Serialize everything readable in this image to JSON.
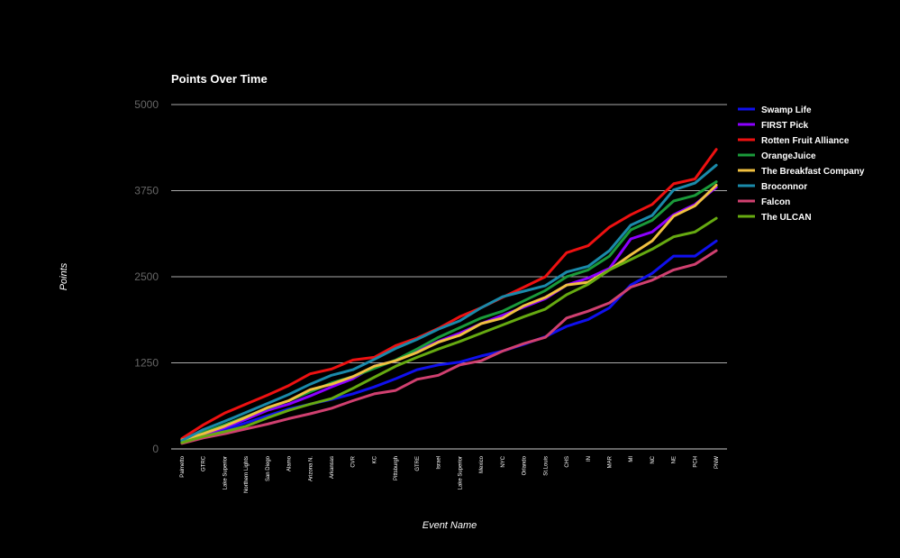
{
  "chart_data": {
    "type": "line",
    "title": "Points Over Time",
    "xlabel": "Event Name",
    "ylabel": "Points",
    "ylim": [
      0,
      5000
    ],
    "yticks": [
      0,
      1250,
      2500,
      3750,
      5000
    ],
    "grid": true,
    "legend_position": "right",
    "background": "#000000",
    "categories": [
      "Palmetto",
      "GTRC",
      "Lake Superior",
      "Northern Lights",
      "San Diego",
      "Alamo",
      "Arizona N.",
      "Arkansas",
      "CVR",
      "KC",
      "Pittsburgh",
      "GTRE",
      "Israel",
      "Lake Superior",
      "Mexico",
      "NYC",
      "Orlando",
      "St.Louis",
      "CHS",
      "IN",
      "MAR",
      "MI",
      "NC",
      "NE",
      "PCH",
      "PNW"
    ],
    "series": [
      {
        "name": "Swamp Life",
        "color": "#1010ee",
        "values": [
          110,
          180,
          280,
          380,
          480,
          580,
          650,
          720,
          800,
          900,
          1020,
          1150,
          1220,
          1260,
          1350,
          1420,
          1520,
          1630,
          1780,
          1880,
          2050,
          2380,
          2550,
          2800,
          2800,
          3020
        ]
      },
      {
        "name": "FIRST Pick",
        "color": "#8b00ff",
        "values": [
          120,
          200,
          310,
          430,
          560,
          650,
          770,
          900,
          1020,
          1200,
          1280,
          1420,
          1560,
          1680,
          1820,
          1940,
          2060,
          2180,
          2380,
          2480,
          2620,
          3050,
          3150,
          3400,
          3550,
          3800
        ]
      },
      {
        "name": "Rotten Fruit Alliance",
        "color": "#ee1111",
        "values": [
          150,
          350,
          520,
          650,
          780,
          920,
          1090,
          1160,
          1290,
          1330,
          1500,
          1610,
          1750,
          1920,
          2050,
          2200,
          2350,
          2500,
          2850,
          2950,
          3220,
          3400,
          3550,
          3850,
          3920,
          4350
        ]
      },
      {
        "name": "OrangeJuice",
        "color": "#1a9a3a",
        "values": [
          100,
          240,
          350,
          470,
          590,
          700,
          830,
          960,
          1050,
          1170,
          1290,
          1450,
          1620,
          1760,
          1900,
          2000,
          2150,
          2300,
          2500,
          2600,
          2800,
          3180,
          3320,
          3600,
          3680,
          3880
        ]
      },
      {
        "name": "The Breakfast Company",
        "color": "#f0c040",
        "values": [
          130,
          220,
          330,
          460,
          600,
          700,
          860,
          940,
          1050,
          1200,
          1280,
          1400,
          1550,
          1650,
          1820,
          1900,
          2080,
          2200,
          2380,
          2420,
          2600,
          2820,
          3020,
          3380,
          3530,
          3830
        ]
      },
      {
        "name": "Broconnor",
        "color": "#1a8aaa",
        "values": [
          120,
          280,
          400,
          530,
          660,
          790,
          940,
          1070,
          1150,
          1300,
          1460,
          1590,
          1740,
          1860,
          2050,
          2210,
          2290,
          2370,
          2570,
          2650,
          2880,
          3250,
          3390,
          3760,
          3860,
          4120
        ]
      },
      {
        "name": "Falcon",
        "color": "#d04070",
        "values": [
          80,
          160,
          220,
          290,
          360,
          440,
          510,
          590,
          700,
          800,
          850,
          1010,
          1070,
          1220,
          1280,
          1420,
          1530,
          1620,
          1900,
          2000,
          2120,
          2350,
          2450,
          2600,
          2680,
          2880
        ]
      },
      {
        "name": "The ULCAN",
        "color": "#66aa11",
        "values": [
          90,
          180,
          250,
          330,
          450,
          560,
          650,
          730,
          880,
          1040,
          1200,
          1330,
          1450,
          1560,
          1680,
          1800,
          1920,
          2030,
          2240,
          2390,
          2600,
          2750,
          2900,
          3080,
          3150,
          3350
        ]
      }
    ]
  }
}
